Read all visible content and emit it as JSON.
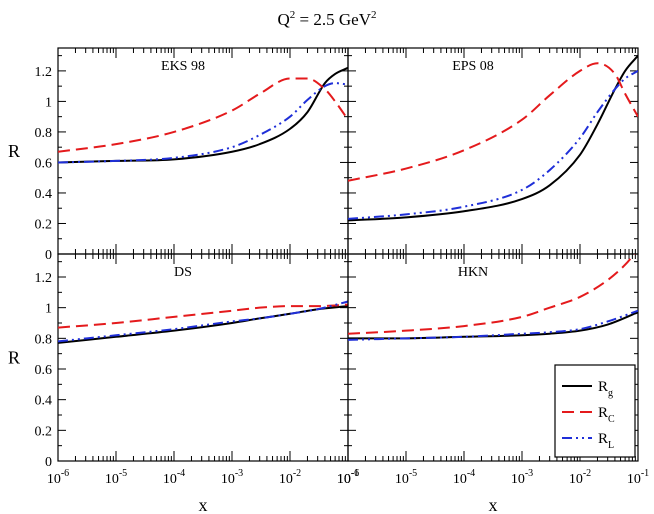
{
  "figure": {
    "title": "Q² = 2.5 GeV²",
    "title_main": "Q",
    "title_sup1": "2",
    "title_mid": " = 2.5 GeV",
    "title_sup2": "2"
  },
  "legend": {
    "entries": [
      {
        "key": "g",
        "base": "R",
        "sub": "g"
      },
      {
        "key": "C",
        "base": "R",
        "sub": "C"
      },
      {
        "key": "L",
        "base": "R",
        "sub": "L"
      }
    ]
  },
  "colors": {
    "g": "#000000",
    "C": "#e41a1c",
    "L": "#1f2fd8"
  },
  "chart_data": [
    {
      "type": "line",
      "title": "EKS 98",
      "xlabel": "x",
      "ylabel": "R",
      "xscale": "log",
      "xlim": [
        1e-06,
        0.1
      ],
      "ylim": [
        0,
        1.35
      ],
      "yticks": [
        "0",
        "0.2",
        "0.4",
        "0.6",
        "0.8",
        "1",
        "1.2"
      ],
      "xticks": [],
      "series": [
        {
          "name": "R_g",
          "x": [
            1e-06,
            1e-05,
            0.0001,
            0.001,
            0.003,
            0.01,
            0.02,
            0.04,
            0.06,
            0.1
          ],
          "values": [
            0.6,
            0.61,
            0.62,
            0.67,
            0.72,
            0.82,
            0.93,
            1.12,
            1.18,
            1.22
          ]
        },
        {
          "name": "R_C",
          "x": [
            1e-06,
            1e-05,
            0.0001,
            0.001,
            0.003,
            0.01,
            0.02,
            0.04,
            0.06,
            0.1
          ],
          "values": [
            0.67,
            0.72,
            0.8,
            0.94,
            1.05,
            1.15,
            1.15,
            1.08,
            1.0,
            0.88
          ]
        },
        {
          "name": "R_L",
          "x": [
            1e-06,
            1e-05,
            0.0001,
            0.001,
            0.003,
            0.01,
            0.02,
            0.04,
            0.06,
            0.1
          ],
          "values": [
            0.6,
            0.61,
            0.63,
            0.7,
            0.78,
            0.9,
            1.01,
            1.1,
            1.12,
            1.11
          ]
        }
      ]
    },
    {
      "type": "line",
      "title": "EPS 08",
      "xlabel": "x",
      "ylabel": "",
      "xscale": "log",
      "xlim": [
        1e-06,
        0.1
      ],
      "ylim": [
        0,
        1.35
      ],
      "yticks": [],
      "xticks": [],
      "series": [
        {
          "name": "R_g",
          "x": [
            1e-06,
            1e-05,
            0.0001,
            0.001,
            0.003,
            0.01,
            0.02,
            0.04,
            0.06,
            0.1
          ],
          "values": [
            0.22,
            0.24,
            0.28,
            0.36,
            0.45,
            0.65,
            0.85,
            1.08,
            1.2,
            1.3
          ]
        },
        {
          "name": "R_C",
          "x": [
            1e-06,
            1e-05,
            0.0001,
            0.001,
            0.003,
            0.01,
            0.02,
            0.04,
            0.06,
            0.1
          ],
          "values": [
            0.48,
            0.56,
            0.68,
            0.88,
            1.04,
            1.2,
            1.25,
            1.18,
            1.05,
            0.9
          ]
        },
        {
          "name": "R_L",
          "x": [
            1e-06,
            1e-05,
            0.0001,
            0.001,
            0.003,
            0.01,
            0.02,
            0.04,
            0.06,
            0.1
          ],
          "values": [
            0.23,
            0.26,
            0.31,
            0.42,
            0.55,
            0.76,
            0.93,
            1.08,
            1.15,
            1.2
          ]
        }
      ]
    },
    {
      "type": "line",
      "title": "DS",
      "xlabel": "x",
      "ylabel": "R",
      "xscale": "log",
      "xlim": [
        1e-06,
        0.1
      ],
      "ylim": [
        0,
        1.35
      ],
      "yticks": [
        "0",
        "0.2",
        "0.4",
        "0.6",
        "0.8",
        "1",
        "1.2"
      ],
      "xticks": [
        {
          "base": "10",
          "exp": "-6"
        },
        {
          "base": "10",
          "exp": "-5"
        },
        {
          "base": "10",
          "exp": "-4"
        },
        {
          "base": "10",
          "exp": "-3"
        },
        {
          "base": "10",
          "exp": "-2"
        },
        {
          "base": "10",
          "exp": "-1"
        }
      ],
      "series": [
        {
          "name": "R_g",
          "x": [
            1e-06,
            1e-05,
            0.0001,
            0.001,
            0.003,
            0.01,
            0.03,
            0.1
          ],
          "values": [
            0.77,
            0.81,
            0.85,
            0.9,
            0.93,
            0.96,
            0.99,
            1.01
          ]
        },
        {
          "name": "R_C",
          "x": [
            1e-06,
            1e-05,
            0.0001,
            0.001,
            0.003,
            0.01,
            0.03,
            0.1
          ],
          "values": [
            0.87,
            0.9,
            0.94,
            0.98,
            1.0,
            1.01,
            1.01,
            1.02
          ]
        },
        {
          "name": "R_L",
          "x": [
            1e-06,
            1e-05,
            0.0001,
            0.001,
            0.003,
            0.01,
            0.03,
            0.1
          ],
          "values": [
            0.78,
            0.82,
            0.86,
            0.91,
            0.93,
            0.96,
            0.99,
            1.04
          ]
        }
      ]
    },
    {
      "type": "line",
      "title": "HKN",
      "xlabel": "x",
      "ylabel": "",
      "xscale": "log",
      "xlim": [
        1e-06,
        0.1
      ],
      "ylim": [
        0,
        1.35
      ],
      "yticks": [],
      "xticks": [
        {
          "base": "10",
          "exp": "-6"
        },
        {
          "base": "10",
          "exp": "-5"
        },
        {
          "base": "10",
          "exp": "-4"
        },
        {
          "base": "10",
          "exp": "-3"
        },
        {
          "base": "10",
          "exp": "-2"
        },
        {
          "base": "10",
          "exp": "-1"
        }
      ],
      "series": [
        {
          "name": "R_g",
          "x": [
            1e-06,
            1e-05,
            0.0001,
            0.001,
            0.003,
            0.01,
            0.03,
            0.1
          ],
          "values": [
            0.8,
            0.8,
            0.81,
            0.82,
            0.83,
            0.85,
            0.89,
            0.97
          ]
        },
        {
          "name": "R_C",
          "x": [
            1e-06,
            1e-05,
            0.0001,
            0.001,
            0.003,
            0.01,
            0.03,
            0.06,
            0.1
          ],
          "values": [
            0.83,
            0.85,
            0.88,
            0.94,
            1.0,
            1.07,
            1.18,
            1.28,
            1.38
          ]
        },
        {
          "name": "R_L",
          "x": [
            1e-06,
            1e-05,
            0.0001,
            0.001,
            0.003,
            0.01,
            0.03,
            0.1
          ],
          "values": [
            0.79,
            0.8,
            0.81,
            0.83,
            0.84,
            0.86,
            0.91,
            0.98
          ]
        }
      ]
    }
  ]
}
